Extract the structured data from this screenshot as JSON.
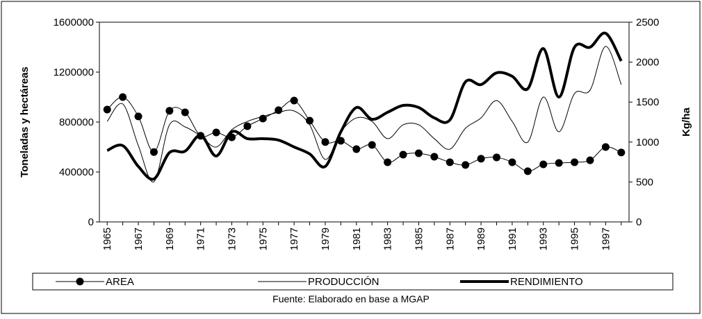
{
  "chart_data": {
    "type": "line",
    "x": [
      1965,
      1966,
      1967,
      1968,
      1969,
      1970,
      1971,
      1972,
      1973,
      1974,
      1975,
      1976,
      1977,
      1978,
      1979,
      1980,
      1981,
      1982,
      1983,
      1984,
      1985,
      1986,
      1987,
      1988,
      1989,
      1990,
      1991,
      1992,
      1993,
      1994,
      1995,
      1996,
      1997,
      1998
    ],
    "xlim": [
      1964.5,
      1998.5
    ],
    "xticks": [
      1965,
      1967,
      1969,
      1971,
      1973,
      1975,
      1977,
      1979,
      1981,
      1983,
      1985,
      1987,
      1989,
      1991,
      1993,
      1995,
      1997
    ],
    "y_label": "Toneladas y hectáreas",
    "y2_label": "Kg/ha",
    "ylim": [
      0,
      1600000
    ],
    "yticks": [
      0,
      400000,
      800000,
      1200000,
      1600000
    ],
    "y2lim": [
      0,
      2500
    ],
    "y2ticks": [
      0,
      500,
      1000,
      1500,
      2000,
      2500
    ],
    "series": [
      {
        "name": "AREA",
        "color": "#000000",
        "marker": "circle",
        "line_width": 1,
        "values": [
          900000,
          1000000,
          845000,
          560000,
          890000,
          878000,
          690000,
          717000,
          678000,
          767000,
          828000,
          895000,
          972000,
          811000,
          640000,
          650000,
          583000,
          617000,
          478000,
          539000,
          550000,
          522000,
          478000,
          456000,
          506000,
          517000,
          478000,
          406000,
          461000,
          472000,
          478000,
          494000,
          600000,
          556000
        ]
      },
      {
        "name": "PRODUCCIÓN",
        "color": "#000000",
        "marker": "none",
        "line_width": 1,
        "values": [
          805000,
          945000,
          611000,
          322000,
          778000,
          761000,
          689000,
          600000,
          739000,
          805000,
          845000,
          878000,
          889000,
          778000,
          500000,
          722000,
          833000,
          805000,
          667000,
          778000,
          778000,
          667000,
          583000,
          750000,
          833000,
          972000,
          805000,
          639000,
          1000000,
          722000,
          1028000,
          1056000,
          1406000,
          1100000
        ]
      },
      {
        "name": "RENDIMIENTO",
        "color": "#000000",
        "marker": "none",
        "line_width": 4,
        "axis": "y2",
        "values": [
          894,
          955,
          694,
          538,
          868,
          885,
          1085,
          825,
          1128,
          1042,
          1042,
          1024,
          938,
          851,
          694,
          1128,
          1432,
          1285,
          1372,
          1458,
          1432,
          1302,
          1276,
          1753,
          1719,
          1866,
          1823,
          1667,
          2170,
          1563,
          2187,
          2187,
          2361,
          2014
        ]
      }
    ],
    "source": "Fuente: Elaborado en base a MGAP"
  }
}
